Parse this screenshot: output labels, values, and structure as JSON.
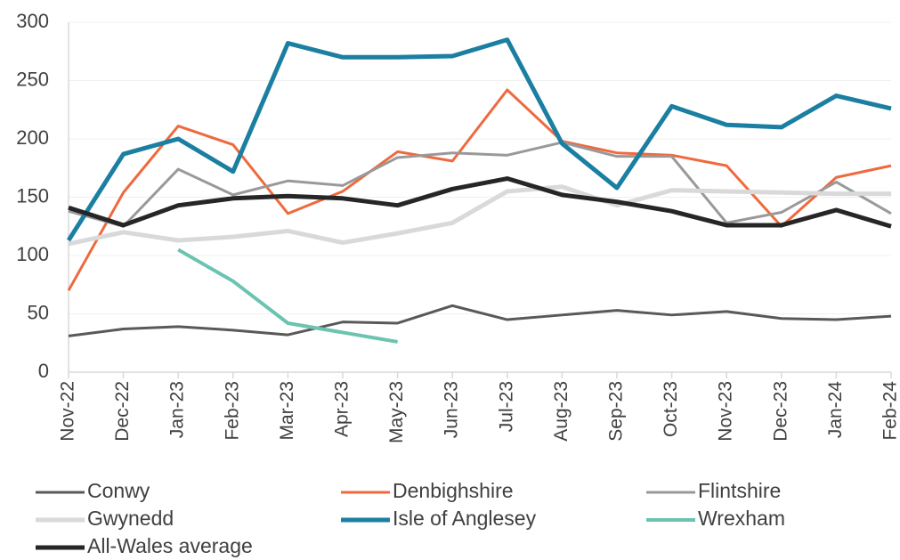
{
  "chart_data": {
    "type": "line",
    "categories": [
      "Nov-22",
      "Dec-22",
      "Jan-23",
      "Feb-23",
      "Mar-23",
      "Apr-23",
      "May-23",
      "Jun-23",
      "Jul-23",
      "Aug-23",
      "Sep-23",
      "Oct-23",
      "Nov-23",
      "Dec-23",
      "Jan-24",
      "Feb-24"
    ],
    "series": [
      {
        "name": "Conwy",
        "color": "#595959",
        "values": [
          31,
          37,
          39,
          36,
          32,
          43,
          42,
          57,
          45,
          49,
          53,
          49,
          52,
          46,
          45,
          48
        ]
      },
      {
        "name": "Denbighshire",
        "color": "#ee6a3e",
        "values": [
          70,
          154,
          211,
          195,
          136,
          155,
          189,
          181,
          242,
          198,
          188,
          186,
          177,
          125,
          167,
          177
        ]
      },
      {
        "name": "Flintshire",
        "color": "#999999",
        "values": [
          138,
          125,
          174,
          152,
          164,
          160,
          184,
          188,
          186,
          197,
          185,
          185,
          128,
          137,
          163,
          136
        ]
      },
      {
        "name": "Gwynedd",
        "color": "#d9d9d9",
        "values": [
          110,
          120,
          113,
          116,
          121,
          111,
          119,
          128,
          155,
          159,
          143,
          156,
          155,
          154,
          153,
          153
        ]
      },
      {
        "name": "Isle of Anglesey",
        "color": "#1b7fa1",
        "values": [
          113,
          187,
          200,
          172,
          282,
          270,
          270,
          271,
          285,
          196,
          158,
          228,
          212,
          210,
          237,
          226
        ]
      },
      {
        "name": "Wrexham",
        "color": "#6cc3b0",
        "values": [
          null,
          null,
          105,
          78,
          42,
          34,
          26,
          null,
          null,
          null,
          null,
          null,
          null,
          null,
          null,
          null
        ]
      },
      {
        "name": "All-Wales average",
        "color": "#262626",
        "values": [
          141,
          126,
          143,
          149,
          151,
          149,
          143,
          157,
          166,
          152,
          146,
          138,
          126,
          126,
          139,
          125
        ]
      }
    ],
    "ylim": [
      0,
      300
    ],
    "yticks": [
      0,
      50,
      100,
      150,
      200,
      250,
      300
    ],
    "grid": true
  }
}
